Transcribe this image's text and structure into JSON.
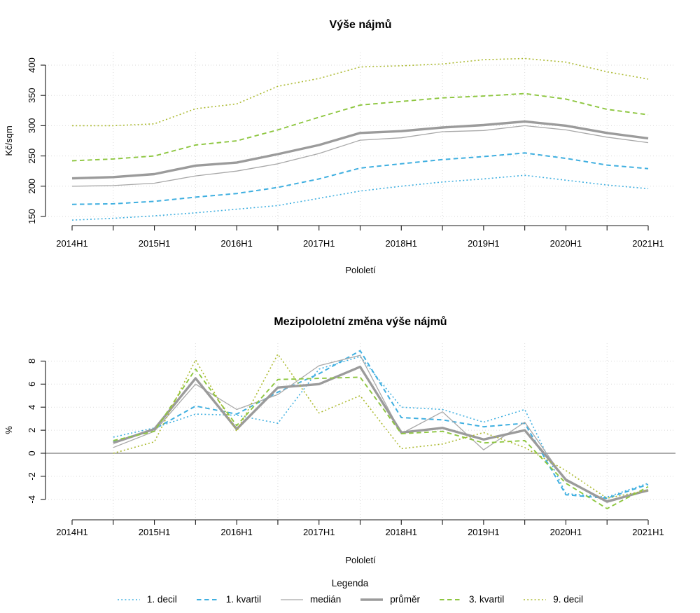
{
  "window": {
    "background": "#ffffff"
  },
  "legend": {
    "title": "Legenda",
    "items": [
      {
        "label": "1. decil",
        "color": "#3fafe0",
        "dash": "2 3.2",
        "width": 1.6
      },
      {
        "label": "1. kvartil",
        "color": "#3fafe0",
        "dash": "6.5 4.5",
        "width": 2.0
      },
      {
        "label": "medián",
        "color": "#a8a8a8",
        "dash": "",
        "width": 1.3
      },
      {
        "label": "průměr",
        "color": "#9b9b9b",
        "dash": "",
        "width": 3.4
      },
      {
        "label": "3. kvartil",
        "color": "#8dc63f",
        "dash": "6.5 4.5",
        "width": 1.9
      },
      {
        "label": "9. decil",
        "color": "#acba30",
        "dash": "2 3.2",
        "width": 1.6
      }
    ]
  },
  "chart_data": [
    {
      "type": "line",
      "title": "Výše nájmů",
      "xlabel": "Pololetí",
      "ylabel": "Kč/sqm",
      "categories": [
        "2014H1",
        "2014H2",
        "2015H1",
        "2015H2",
        "2016H1",
        "2016H2",
        "2017H1",
        "2017H2",
        "2018H1",
        "2018H2",
        "2019H1",
        "2019H2",
        "2020H1",
        "2020H2",
        "2021H1"
      ],
      "x_tick_labels": [
        "2014H1",
        "2015H1",
        "2016H1",
        "2017H1",
        "2018H1",
        "2019H1",
        "2020H1",
        "2021H1"
      ],
      "yticks": [
        150,
        200,
        250,
        300,
        350,
        400
      ],
      "ylim": [
        140,
        415
      ],
      "grid": true,
      "legend_position": "bottom",
      "series": [
        {
          "name": "1. decil",
          "color": "#3fafe0",
          "dash": "2 3.2",
          "width": 1.6,
          "values": [
            144,
            147,
            151,
            156,
            162,
            168,
            180,
            192,
            200,
            207,
            212,
            218,
            210,
            202,
            196
          ]
        },
        {
          "name": "1. kvartil",
          "color": "#3fafe0",
          "dash": "6.5 4.5",
          "width": 2.0,
          "values": [
            170,
            171,
            175,
            182,
            188,
            198,
            212,
            230,
            237,
            244,
            249,
            255,
            246,
            235,
            229
          ]
        },
        {
          "name": "medián",
          "color": "#a8a8a8",
          "dash": "",
          "width": 1.3,
          "values": [
            200,
            201,
            205,
            217,
            225,
            237,
            254,
            276,
            280,
            290,
            292,
            300,
            293,
            281,
            272
          ]
        },
        {
          "name": "průměr",
          "color": "#9b9b9b",
          "dash": "",
          "width": 3.4,
          "values": [
            213,
            215,
            220,
            234,
            239,
            253,
            268,
            288,
            291,
            297,
            301,
            307,
            300,
            288,
            279
          ]
        },
        {
          "name": "3. kvartil",
          "color": "#8dc63f",
          "dash": "6.5 4.5",
          "width": 1.9,
          "values": [
            242,
            245,
            250,
            268,
            275,
            293,
            314,
            334,
            340,
            346,
            349,
            353,
            344,
            327,
            318
          ]
        },
        {
          "name": "9. decil",
          "color": "#acba30",
          "dash": "2 3.2",
          "width": 1.6,
          "values": [
            300,
            300,
            303,
            328,
            336,
            365,
            378,
            397,
            399,
            402,
            409,
            411,
            405,
            389,
            377
          ]
        }
      ]
    },
    {
      "type": "line",
      "title": "Mezipololetní změna výše nájmů",
      "xlabel": "Pololetí",
      "ylabel": "%",
      "categories": [
        "2014H2",
        "2015H1",
        "2015H2",
        "2016H1",
        "2016H2",
        "2017H1",
        "2017H2",
        "2018H1",
        "2018H2",
        "2019H1",
        "2019H2",
        "2020H1",
        "2020H2",
        "2021H1"
      ],
      "x_tick_labels": [
        "2014H1",
        "2015H1",
        "2016H1",
        "2017H1",
        "2018H1",
        "2019H1",
        "2020H1",
        "2021H1"
      ],
      "yticks": [
        -4,
        -2,
        0,
        2,
        4,
        6,
        8
      ],
      "ylim": [
        -5.2,
        9.3
      ],
      "grid": true,
      "zero_line": true,
      "series": [
        {
          "name": "1. decil",
          "color": "#3fafe0",
          "dash": "2 3.2",
          "width": 1.6,
          "values": [
            1.4,
            2.2,
            3.4,
            3.3,
            2.6,
            7.3,
            8.4,
            4.0,
            3.8,
            2.7,
            3.8,
            -3.5,
            -3.8,
            -2.6
          ]
        },
        {
          "name": "1. kvartil",
          "color": "#3fafe0",
          "dash": "6.5 4.5",
          "width": 2.0,
          "values": [
            1.0,
            2.1,
            4.1,
            3.4,
            5.3,
            6.9,
            8.9,
            3.1,
            2.9,
            2.3,
            2.6,
            -3.6,
            -3.9,
            -2.7
          ]
        },
        {
          "name": "medián",
          "color": "#a8a8a8",
          "dash": "",
          "width": 1.3,
          "values": [
            0.5,
            1.9,
            6.0,
            3.8,
            5.1,
            7.6,
            8.5,
            1.7,
            3.6,
            0.3,
            2.7,
            -2.4,
            -4.1,
            -3.3
          ]
        },
        {
          "name": "průměr",
          "color": "#9b9b9b",
          "dash": "",
          "width": 3.4,
          "values": [
            0.9,
            2.1,
            6.5,
            2.1,
            5.7,
            6.0,
            7.5,
            1.8,
            2.2,
            1.2,
            2.0,
            -2.3,
            -4.2,
            -3.2
          ]
        },
        {
          "name": "3. kvartil",
          "color": "#8dc63f",
          "dash": "6.5 4.5",
          "width": 1.9,
          "values": [
            1.1,
            1.9,
            7.3,
            2.4,
            6.4,
            6.5,
            6.6,
            1.7,
            1.9,
            0.9,
            1.1,
            -2.6,
            -4.8,
            -2.9
          ]
        },
        {
          "name": "9. decil",
          "color": "#acba30",
          "dash": "2 3.2",
          "width": 1.6,
          "values": [
            0.0,
            1.0,
            8.1,
            1.9,
            8.6,
            3.5,
            5.0,
            0.4,
            0.8,
            1.8,
            0.5,
            -1.5,
            -3.9,
            -3.2
          ]
        }
      ]
    }
  ]
}
